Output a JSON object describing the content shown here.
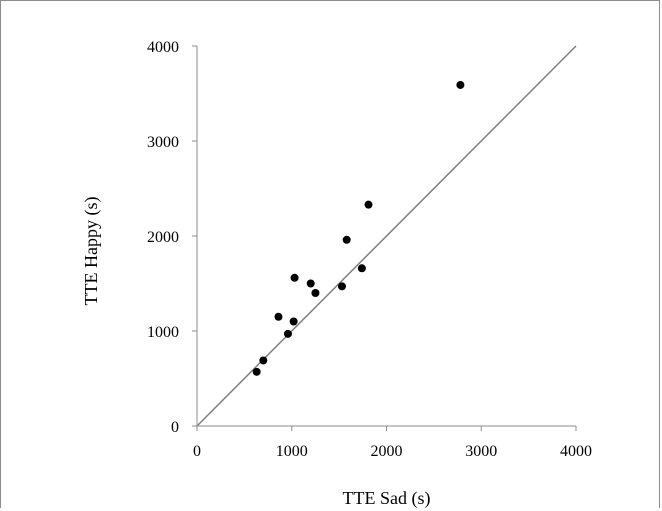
{
  "chart_data": {
    "type": "scatter",
    "title": "",
    "xlabel": "TTE Sad (s)",
    "ylabel": "TTE Happy (s)",
    "xlim": [
      0,
      4000
    ],
    "ylim": [
      0,
      4000
    ],
    "xticks": [
      0,
      1000,
      2000,
      3000,
      4000
    ],
    "yticks": [
      0,
      1000,
      2000,
      3000,
      4000
    ],
    "xtick_labels": [
      "0",
      "1000",
      "2000",
      "3000",
      "4000"
    ],
    "ytick_labels": [
      "0",
      "1000",
      "2000",
      "3000",
      "4000"
    ],
    "grid": false,
    "legend": "none",
    "reference_line": {
      "type": "identity",
      "from": [
        0,
        0
      ],
      "to": [
        4000,
        4000
      ]
    },
    "series": [
      {
        "points": [
          {
            "x": 630,
            "y": 570
          },
          {
            "x": 700,
            "y": 690
          },
          {
            "x": 860,
            "y": 1150
          },
          {
            "x": 960,
            "y": 970
          },
          {
            "x": 1020,
            "y": 1100
          },
          {
            "x": 1030,
            "y": 1560
          },
          {
            "x": 1200,
            "y": 1500
          },
          {
            "x": 1250,
            "y": 1400
          },
          {
            "x": 1530,
            "y": 1470
          },
          {
            "x": 1580,
            "y": 1960
          },
          {
            "x": 1740,
            "y": 1660
          },
          {
            "x": 1810,
            "y": 2330
          },
          {
            "x": 2780,
            "y": 3590
          }
        ]
      }
    ],
    "colors": {
      "points": "#000000",
      "reference_line": "#7f7f7f",
      "axes": "#8c8c8c"
    }
  }
}
